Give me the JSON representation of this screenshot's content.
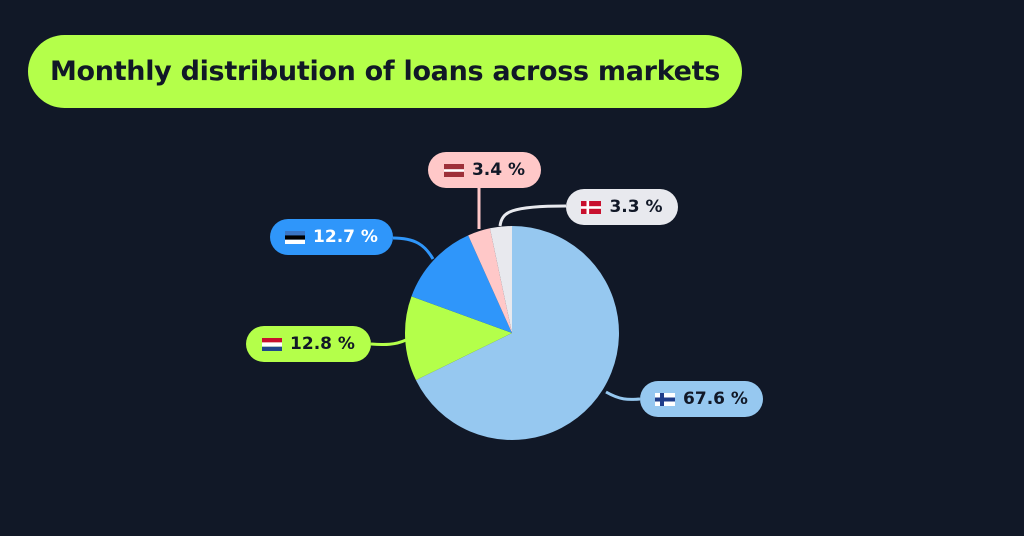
{
  "chart_data": {
    "type": "pie",
    "title": "Monthly distribution of loans across markets",
    "slices": [
      {
        "flag": "flag-finland-icon",
        "value": 67.6,
        "label": "67.6 %",
        "color": "#96c8f0",
        "text_color": "#111827"
      },
      {
        "flag": "flag-netherlands-icon",
        "value": 12.8,
        "label": "12.8 %",
        "color": "#b4ff4a",
        "text_color": "#111827"
      },
      {
        "flag": "flag-estonia-icon",
        "value": 12.7,
        "label": "12.7 %",
        "color": "#2f96fa",
        "text_color": "#ffffff"
      },
      {
        "flag": "flag-latvia-icon",
        "value": 3.4,
        "label": "3.4 %",
        "color": "#ffc8c8",
        "text_color": "#111827"
      },
      {
        "flag": "flag-denmark-icon",
        "value": 3.3,
        "label": "3.3 %",
        "color": "#e8e9ee",
        "text_color": "#111827"
      }
    ],
    "start_angle": "top",
    "direction": "clockwise",
    "legend": "none"
  },
  "colors": {
    "background": "#111827",
    "accent": "#b4ff4a"
  }
}
